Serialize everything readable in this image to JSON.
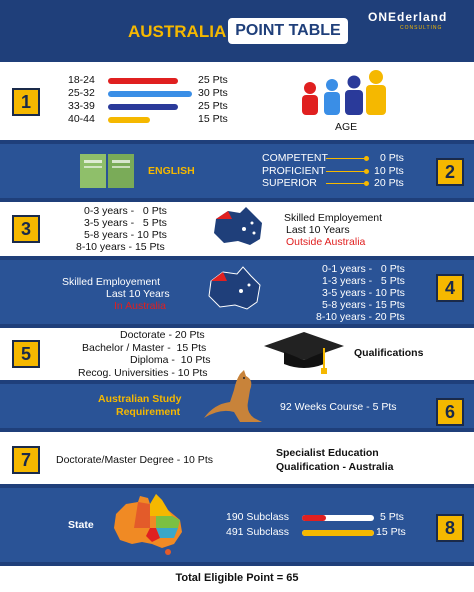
{
  "header": {
    "title_country": "AUSTRALIA",
    "title_table": "POINT TABLE",
    "brand": "ONEderland",
    "brand_sub": "CONSULTING"
  },
  "sections": {
    "age": {
      "number": "1",
      "rows": [
        {
          "label": "18-24",
          "points": "25 Pts",
          "color": "#e02020",
          "fill": 0.83
        },
        {
          "label": "25-32",
          "points": "30 Pts",
          "color": "#3a8ee6",
          "fill": 1.0
        },
        {
          "label": "33-39",
          "points": "25 Pts",
          "color": "#2a3a9a",
          "fill": 0.83
        },
        {
          "label": "40-44",
          "points": "15 Pts",
          "color": "#f5b800",
          "fill": 0.5
        }
      ],
      "caption": "AGE"
    },
    "english": {
      "number": "2",
      "label": "ENGLISH",
      "rows": [
        {
          "label": "COMPETENT",
          "points": "0 Pts"
        },
        {
          "label": "PROFICIENT",
          "points": "10 Pts"
        },
        {
          "label": "SUPERIOR",
          "points": "20 Pts"
        }
      ]
    },
    "outside": {
      "number": "3",
      "rows": [
        "0-3 years -   0 Pts",
        "3-5 years -   5 Pts",
        "5-8 years - 10 Pts",
        "8-10 years - 15 Pts"
      ],
      "title1": "Skilled Employement",
      "title2": "Last 10 Years",
      "title3": "Outside Australia"
    },
    "inside": {
      "number": "4",
      "title1": "Skilled Employement",
      "title2": "Last 10 Years",
      "title3": "In Australia",
      "rows": [
        "0-1 years -   0 Pts",
        "1-3 years -   5 Pts",
        "3-5 years - 10 Pts",
        "5-8 years - 15 Pts",
        "8-10 years - 20 Pts"
      ]
    },
    "qualifications": {
      "number": "5",
      "rows": [
        "Doctorate - 20 Pts",
        "Bachelor / Master -  15 Pts",
        "Diploma -  10 Pts",
        "Recog. Universities - 10 Pts"
      ],
      "label": "Qualifications"
    },
    "study": {
      "number": "6",
      "label1": "Australian Study",
      "label2": "Requirement",
      "detail": "92 Weeks Course - 5 Pts"
    },
    "specialist": {
      "number": "7",
      "detail": "Doctorate/Master Degree - 10 Pts",
      "label1": "Specialist Education",
      "label2": "Qualification - Australia"
    },
    "state": {
      "number": "8",
      "label": "State",
      "rows": [
        {
          "label": "190 Subclass",
          "points": "5 Pts",
          "color": "#e02020",
          "fill": 0.33
        },
        {
          "label": "491 Subclass",
          "points": "15 Pts",
          "color": "#f5b800",
          "fill": 1.0
        }
      ]
    }
  },
  "footer": {
    "total": "Total Eligible Point = 65"
  }
}
